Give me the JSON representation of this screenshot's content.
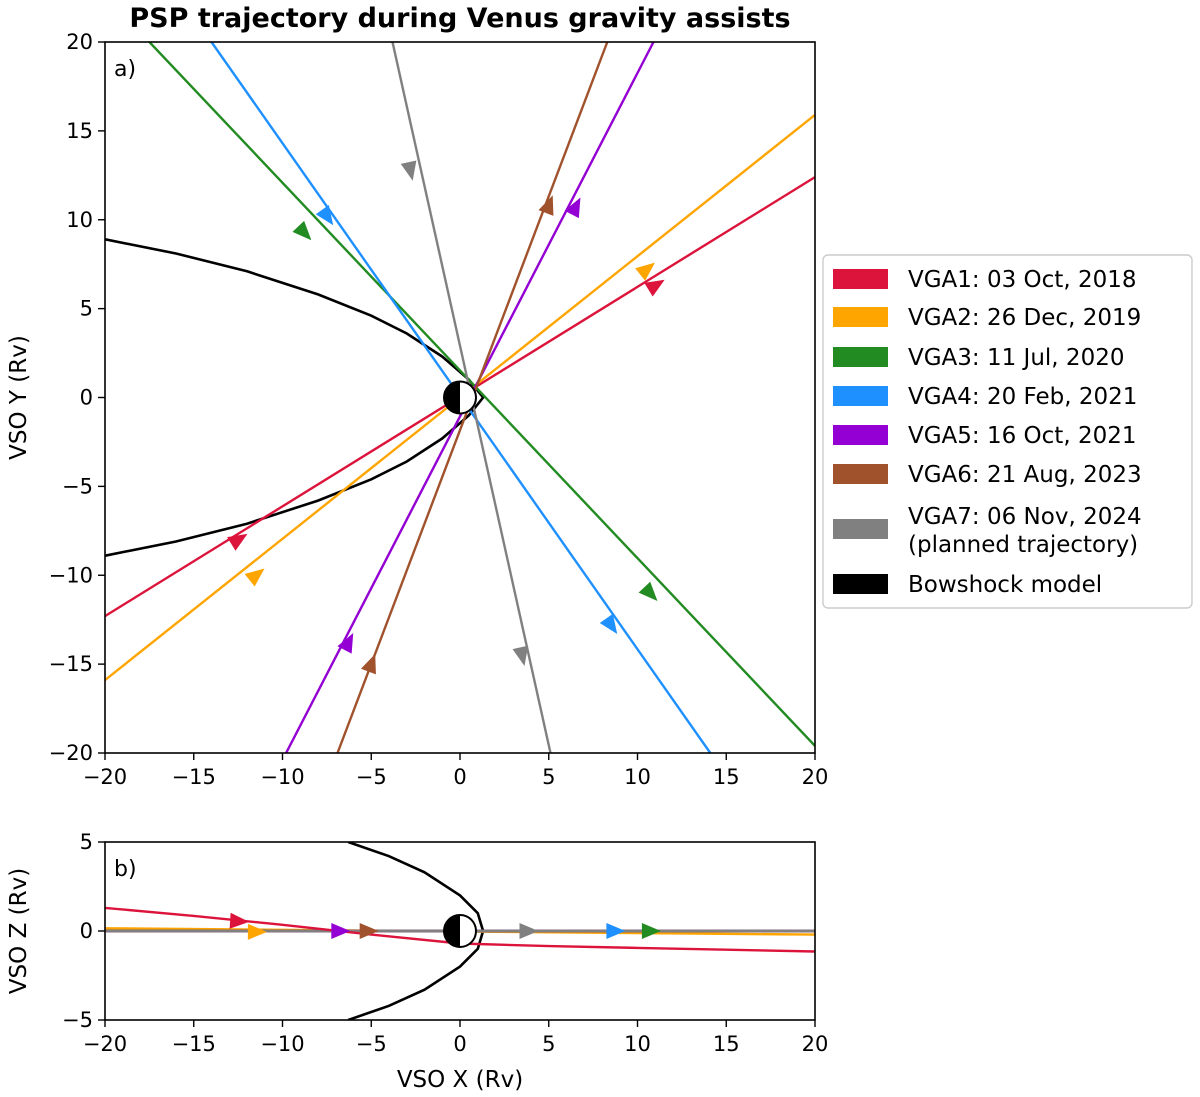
{
  "chart_data": [
    {
      "type": "line",
      "title": "PSP trajectory during Venus gravity assists",
      "panel_label": "a)",
      "xlabel": "",
      "ylabel": "VSO Y (Rv)",
      "xlim": [
        -20,
        20
      ],
      "ylim": [
        -20,
        20
      ],
      "xticks": [
        -20,
        -15,
        -10,
        -5,
        0,
        5,
        10,
        15,
        20
      ],
      "yticks": [
        -20,
        -15,
        -10,
        -5,
        0,
        5,
        10,
        15,
        20
      ],
      "xtick_labels": [
        "−20",
        "−15",
        "−10",
        "−5",
        "0",
        "5",
        "10",
        "15",
        "20"
      ],
      "ytick_labels": [
        "−20",
        "−15",
        "−10",
        "−5",
        "0",
        "5",
        "10",
        "15",
        "20"
      ],
      "series": [
        {
          "name": "VGA1",
          "color": "#dc143c",
          "x": [
            -20,
            20
          ],
          "y": [
            -12.3,
            12.4
          ],
          "arrows": [
            [
              -12.5,
              -8
            ],
            [
              11,
              6.3
            ]
          ]
        },
        {
          "name": "VGA2",
          "color": "#ffa500",
          "x": [
            -20,
            20
          ],
          "y": [
            -15.9,
            15.9
          ],
          "arrows": [
            [
              -11.5,
              -10
            ],
            [
              10.5,
              7.2
            ]
          ]
        },
        {
          "name": "VGA3",
          "color": "#228b22",
          "x": [
            -17.5,
            20
          ],
          "y": [
            20,
            -19.6
          ],
          "arrows": [
            [
              -8.8,
              9.3
            ],
            [
              10.7,
              -11
            ]
          ]
        },
        {
          "name": "VGA4",
          "color": "#1e90ff",
          "x": [
            -14,
            14.1
          ],
          "y": [
            20,
            -20
          ],
          "arrows": [
            [
              -7.5,
              10.2
            ],
            [
              8.5,
              -12.8
            ]
          ]
        },
        {
          "name": "VGA5",
          "color": "#9400d3",
          "x": [
            -9.8,
            10.9
          ],
          "y": [
            -20,
            20
          ],
          "arrows": [
            [
              -6.3,
              -13.8
            ],
            [
              6.5,
              10.7
            ]
          ]
        },
        {
          "name": "VGA6",
          "color": "#a0522d",
          "x": [
            -6.9,
            8.3
          ],
          "y": [
            -20,
            20
          ],
          "arrows": [
            [
              -5,
              -15
            ],
            [
              5,
              10.8
            ]
          ]
        },
        {
          "name": "VGA7",
          "color": "#808080",
          "x": [
            -3.8,
            5.1
          ],
          "y": [
            20,
            -20
          ],
          "arrows": [
            [
              3.5,
              -14.5
            ],
            [
              -2.8,
              12.8
            ]
          ]
        }
      ],
      "bowshock": {
        "color": "#000000",
        "x": [
          -20,
          -16,
          -12,
          -8,
          -5,
          -3,
          -1,
          0.5,
          1.3,
          0.5,
          -1,
          -3,
          -5,
          -8,
          -12,
          -16,
          -20
        ],
        "y": [
          8.9,
          8.1,
          7.1,
          5.8,
          4.6,
          3.6,
          2.3,
          1,
          0,
          -1,
          -2.3,
          -3.6,
          -4.6,
          -5.8,
          -7.1,
          -8.1,
          -8.9
        ]
      }
    },
    {
      "type": "line",
      "title": "",
      "panel_label": "b)",
      "xlabel": "VSO X (Rv)",
      "ylabel": "VSO Z (Rv)",
      "xlim": [
        -20,
        20
      ],
      "ylim": [
        -5,
        5
      ],
      "xticks": [
        -20,
        -15,
        -10,
        -5,
        0,
        5,
        10,
        15,
        20
      ],
      "yticks": [
        -5,
        0,
        5
      ],
      "xtick_labels": [
        "−20",
        "−15",
        "−10",
        "−5",
        "0",
        "5",
        "10",
        "15",
        "20"
      ],
      "ytick_labels": [
        "−5",
        "0",
        "5"
      ],
      "series": [
        {
          "name": "VGA2",
          "color": "#ffa500",
          "x": [
            -20,
            20
          ],
          "y": [
            0.15,
            -0.2
          ],
          "arrows": [
            [
              -11.5,
              -0.05
            ]
          ]
        },
        {
          "name": "VGA3",
          "color": "#228b22",
          "x": [
            -20,
            20
          ],
          "y": [
            0,
            0
          ],
          "arrows": [
            [
              10.7,
              0
            ]
          ]
        },
        {
          "name": "VGA4",
          "color": "#1e90ff",
          "x": [
            -20,
            20
          ],
          "y": [
            0,
            0
          ],
          "arrows": [
            [
              8.7,
              0
            ]
          ]
        },
        {
          "name": "VGA5",
          "color": "#9400d3",
          "x": [
            -20,
            20
          ],
          "y": [
            0,
            0
          ],
          "arrows": [
            [
              -6.8,
              0
            ]
          ]
        },
        {
          "name": "VGA6",
          "color": "#a0522d",
          "x": [
            -20,
            20
          ],
          "y": [
            0,
            0
          ],
          "arrows": [
            [
              -5.2,
              0
            ]
          ]
        },
        {
          "name": "VGA7",
          "color": "#808080",
          "x": [
            -20,
            20
          ],
          "y": [
            0,
            0
          ],
          "arrows": [
            [
              3.8,
              0
            ]
          ]
        },
        {
          "name": "VGA1",
          "color": "#dc143c",
          "x": [
            -20,
            -15,
            -10,
            -5,
            0,
            5,
            10,
            15,
            20
          ],
          "y": [
            1.3,
            0.85,
            0.35,
            -0.2,
            -0.7,
            -0.85,
            -0.95,
            -1.05,
            -1.15
          ],
          "arrows": [
            [
              -12.5,
              0.55
            ]
          ]
        }
      ],
      "bowshock": {
        "color": "#000000",
        "x": [
          -6.3,
          -4,
          -2,
          0,
          1,
          1.3,
          1,
          0,
          -2,
          -4,
          -6.3
        ],
        "y": [
          5,
          4.2,
          3.3,
          2,
          1,
          0,
          -1,
          -2,
          -3.3,
          -4.2,
          -5
        ]
      }
    }
  ],
  "legend": {
    "items": [
      {
        "label": "VGA1: 03 Oct, 2018",
        "color": "#dc143c"
      },
      {
        "label": "VGA2: 26 Dec, 2019",
        "color": "#ffa500"
      },
      {
        "label": "VGA3: 11 Jul, 2020",
        "color": "#228b22"
      },
      {
        "label": "VGA4: 20 Feb, 2021",
        "color": "#1e90ff"
      },
      {
        "label": "VGA5: 16 Oct, 2021",
        "color": "#9400d3"
      },
      {
        "label": "VGA6: 21 Aug, 2023",
        "color": "#a0522d"
      },
      {
        "label": "VGA7: 06 Nov, 2024",
        "label2": "(planned trajectory)",
        "color": "#808080"
      },
      {
        "label": "Bowshock model",
        "color": "#000000"
      }
    ]
  },
  "venus_marker": {
    "x": 0,
    "y": 0,
    "icon": "half-shaded-circle-icon"
  }
}
